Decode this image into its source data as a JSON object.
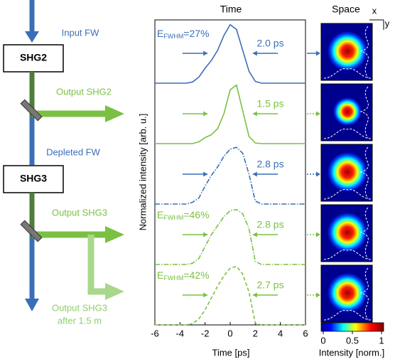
{
  "diagram": {
    "input": "Input FW",
    "box1": "SHG2",
    "output1": "Output SHG2",
    "depleted": "Depleted FW",
    "box2": "SHG3",
    "output2": "Output SHG3",
    "output3_line1": "Output SHG3",
    "output3_line2": "after 1.5 m"
  },
  "space": {
    "title": "Space",
    "x_label": "x",
    "y_label": "y",
    "colorbar_label": "Intensity [norm.]",
    "colorbar_lim": [
      0,
      1
    ],
    "colorbar_ticks": [
      0,
      0.5,
      1
    ]
  },
  "chart_data": {
    "type": "line",
    "title": "Time",
    "x_label": "Time [ps]",
    "y_label": "Normalized intensity [arb. u.]",
    "x": [
      -6,
      -5.5,
      -5,
      -4.5,
      -4,
      -3.5,
      -3,
      -2.5,
      -2,
      -1.5,
      -1,
      -0.5,
      0,
      0.5,
      1,
      1.5,
      2,
      2.5,
      3,
      3.5,
      4,
      4.5,
      5,
      5.5,
      6
    ],
    "xlim": [
      -6,
      6
    ],
    "xticks": [
      -6,
      -4,
      -2,
      0,
      2,
      4,
      6
    ],
    "ylim": [
      0,
      1
    ],
    "series": [
      {
        "color": "#3a6fb7",
        "linestyle": "solid",
        "values": [
          0,
          0,
          0,
          0,
          0,
          0,
          0.02,
          0.1,
          0.25,
          0.38,
          0.55,
          0.8,
          0.98,
          0.9,
          0.55,
          0.2,
          0.03,
          0,
          0,
          0,
          0,
          0,
          0,
          0,
          0
        ],
        "fwhm_label": "2.0 ps",
        "energy": {
          "symbol": "E",
          "subscript": "FWHM",
          "text": "=27%"
        }
      },
      {
        "color": "#7ac143",
        "linestyle": "solid",
        "values": [
          0,
          0,
          0,
          0,
          0,
          0,
          0,
          0.03,
          0.1,
          0.15,
          0.25,
          0.5,
          0.9,
          0.98,
          0.55,
          0.12,
          0.01,
          0,
          0,
          0,
          0,
          0,
          0,
          0,
          0
        ],
        "fwhm_label": "1.5 ps"
      },
      {
        "color": "#3a6fb7",
        "linestyle": "dashdot",
        "values": [
          0,
          0,
          0,
          0,
          0,
          0,
          0.03,
          0.1,
          0.3,
          0.48,
          0.62,
          0.8,
          0.92,
          0.95,
          0.85,
          0.5,
          0.05,
          0,
          0,
          0,
          0,
          0,
          0,
          0,
          0
        ],
        "fwhm_label": "2.8 ps"
      },
      {
        "color": "#7ac143",
        "linestyle": "dashdot",
        "values": [
          0,
          0,
          0,
          0,
          0,
          0,
          0.02,
          0.1,
          0.3,
          0.5,
          0.65,
          0.8,
          0.9,
          0.92,
          0.85,
          0.6,
          0.05,
          0,
          0,
          0,
          0,
          0,
          0,
          0,
          0
        ],
        "fwhm_label": "2.8 ps",
        "energy": {
          "symbol": "E",
          "subscript": "FWHM",
          "text": "=46%"
        }
      },
      {
        "color": "#7ac143",
        "linestyle": "dashed",
        "values": [
          0,
          0,
          0,
          0,
          0,
          0,
          0.02,
          0.1,
          0.25,
          0.45,
          0.65,
          0.82,
          0.95,
          0.98,
          0.85,
          0.55,
          0.03,
          0,
          0,
          0,
          0,
          0,
          0,
          0,
          0
        ],
        "fwhm_label": "2.7 ps",
        "energy": {
          "symbol": "E",
          "subscript": "FWHM",
          "text": "=42%"
        }
      }
    ]
  }
}
